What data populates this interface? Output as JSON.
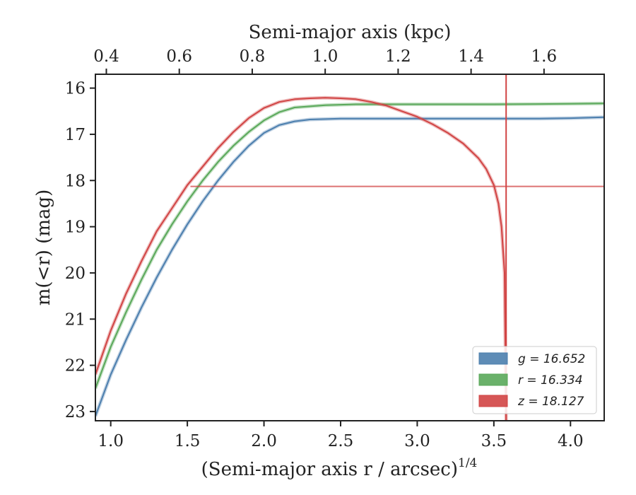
{
  "chart_data": {
    "type": "line",
    "title": "",
    "xlabel": "(Semi-major axis r / arcsec)",
    "xlabel_power": "1/4",
    "ylabel": "m(<r) (mag)",
    "top_xlabel": "Semi-major axis (kpc)",
    "xlim": [
      0.9,
      4.22
    ],
    "ylim": [
      23.2,
      15.7
    ],
    "top_xlim": [
      0.37,
      1.765
    ],
    "x_ticks": [
      "1.0",
      "1.5",
      "2.0",
      "2.5",
      "3.0",
      "3.5",
      "4.0"
    ],
    "y_ticks": [
      "16",
      "17",
      "18",
      "19",
      "20",
      "21",
      "22",
      "23"
    ],
    "top_ticks": [
      "0.4",
      "0.6",
      "0.8",
      "1.0",
      "1.2",
      "1.4",
      "1.6"
    ],
    "legend_position": "lower-right",
    "series": [
      {
        "name": "g",
        "label": "g = 16.652",
        "color": "#4c7fae",
        "x": [
          0.9,
          1.0,
          1.1,
          1.2,
          1.3,
          1.4,
          1.5,
          1.6,
          1.7,
          1.8,
          1.9,
          2.0,
          2.1,
          2.2,
          2.3,
          2.5,
          2.8,
          3.0,
          3.2,
          3.5,
          3.8,
          4.0,
          4.22
        ],
        "y": [
          23.1,
          22.2,
          21.45,
          20.75,
          20.1,
          19.5,
          18.95,
          18.45,
          18.0,
          17.6,
          17.25,
          16.97,
          16.8,
          16.72,
          16.68,
          16.66,
          16.66,
          16.66,
          16.66,
          16.66,
          16.66,
          16.65,
          16.63
        ]
      },
      {
        "name": "r",
        "label": "r = 16.334",
        "color": "#5aa85a",
        "x": [
          0.9,
          1.0,
          1.1,
          1.2,
          1.3,
          1.4,
          1.5,
          1.6,
          1.7,
          1.8,
          1.9,
          2.0,
          2.1,
          2.2,
          2.4,
          2.6,
          2.8,
          3.0,
          3.5,
          4.0,
          4.22
        ],
        "y": [
          22.5,
          21.6,
          20.85,
          20.15,
          19.5,
          18.95,
          18.45,
          18.0,
          17.6,
          17.25,
          16.95,
          16.7,
          16.52,
          16.42,
          16.37,
          16.35,
          16.35,
          16.35,
          16.35,
          16.34,
          16.33
        ]
      },
      {
        "name": "z",
        "label": "z = 18.127",
        "color": "#d14444",
        "x": [
          0.9,
          1.0,
          1.1,
          1.2,
          1.3,
          1.4,
          1.5,
          1.6,
          1.7,
          1.8,
          1.9,
          2.0,
          2.1,
          2.2,
          2.3,
          2.4,
          2.5,
          2.6,
          2.7,
          2.8,
          2.9,
          3.0,
          3.1,
          3.2,
          3.3,
          3.4,
          3.45,
          3.5,
          3.53,
          3.55,
          3.57,
          3.58
        ],
        "y": [
          22.2,
          21.25,
          20.45,
          19.75,
          19.1,
          18.6,
          18.1,
          17.7,
          17.3,
          16.95,
          16.65,
          16.43,
          16.3,
          16.24,
          16.22,
          16.21,
          16.22,
          16.24,
          16.3,
          16.38,
          16.5,
          16.62,
          16.78,
          16.97,
          17.2,
          17.52,
          17.75,
          18.1,
          18.5,
          19.0,
          20.0,
          23.2
        ]
      }
    ],
    "reference_lines": [
      {
        "orientation": "horizontal",
        "value": 18.127,
        "x_start": 1.52,
        "color": "#d14444"
      },
      {
        "orientation": "vertical",
        "value": 3.58,
        "color": "#d14444"
      }
    ]
  }
}
